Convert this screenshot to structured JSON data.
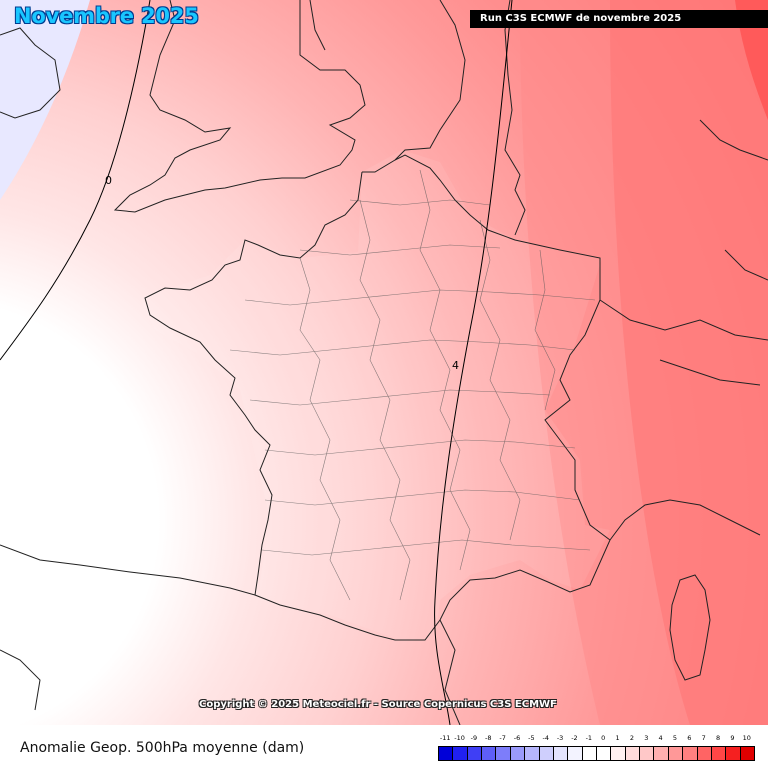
{
  "header": {
    "title": "Novembre 2025",
    "run_label": "Run C3S ECMWF de novembre 2025"
  },
  "map": {
    "contour_labels": [
      {
        "id": "contour-0",
        "text": "0"
      },
      {
        "id": "contour-4",
        "text": "4"
      }
    ],
    "copyright": "Copyright © 2025 Meteociel.fr - Source Copernicus C3S ECMWF"
  },
  "footer": {
    "caption": "Anomalie Geop. 500hPa moyenne (dam)"
  },
  "legend": {
    "ticks": [
      "-11",
      "-10",
      "-9",
      "-8",
      "-7",
      "-6",
      "-5",
      "-4",
      "-3",
      "-2",
      "-1",
      "0",
      "1",
      "2",
      "3",
      "4",
      "5",
      "6",
      "7",
      "8",
      "9",
      "10"
    ],
    "colors": [
      "#0000d8",
      "#2020f0",
      "#3f3ff5",
      "#5e5ef8",
      "#7d7dfa",
      "#9a9afb",
      "#b6b6fc",
      "#cfcffd",
      "#e4e4fe",
      "#f3f3ff",
      "#ffffff",
      "#ffffff",
      "#fff0f0",
      "#ffdcdc",
      "#ffc8c8",
      "#ffb0b0",
      "#ff9898",
      "#ff8080",
      "#ff6464",
      "#ff4646",
      "#f52020",
      "#e00000"
    ]
  }
}
